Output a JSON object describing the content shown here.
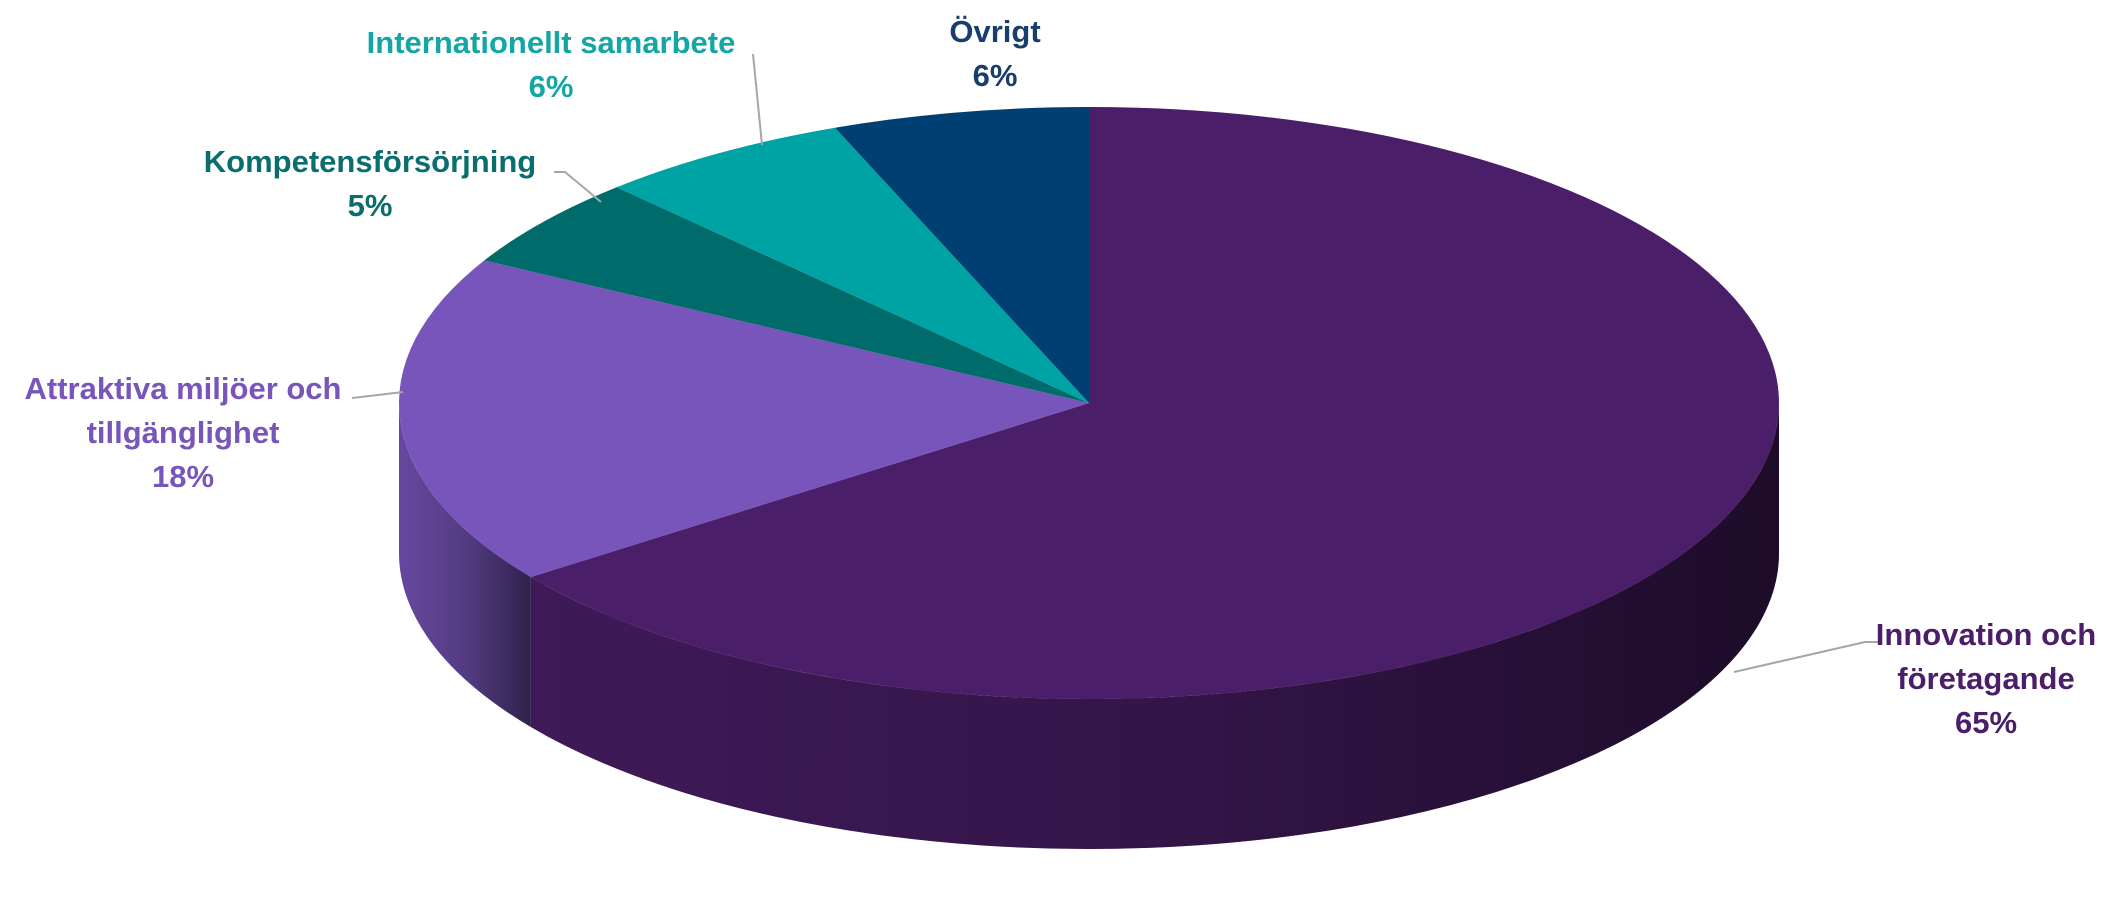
{
  "chart_data": {
    "type": "pie",
    "categories": [
      "Innovation och företagande",
      "Attraktiva miljöer och tillgänglighet",
      "Kompetensförsörjning",
      "Internationellt samarbete",
      "Övrigt"
    ],
    "values": [
      65,
      18,
      5,
      6,
      6
    ],
    "value_labels": [
      "65%",
      "18%",
      "5%",
      "6%",
      "6%"
    ],
    "colors": [
      "#4a1e68",
      "#7755bb",
      "#006b6b",
      "#00a3a3",
      "#003f72"
    ]
  }
}
